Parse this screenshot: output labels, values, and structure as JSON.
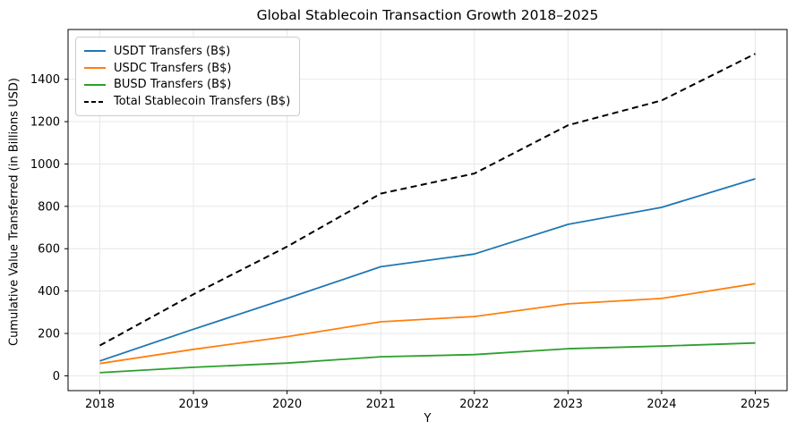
{
  "chart_data": {
    "type": "line",
    "title": "Global Stablecoin Transaction Growth 2018–2025",
    "xlabel": "Y",
    "ylabel": "Cumulative Value Transferred (in Billions USD)",
    "x": [
      2018,
      2019,
      2020,
      2021,
      2022,
      2023,
      2024,
      2025
    ],
    "yticks": [
      0,
      200,
      400,
      600,
      800,
      1000,
      1200,
      1400
    ],
    "ylim": [
      -70,
      1635
    ],
    "grid": true,
    "legend_position": "upper left",
    "series": [
      {
        "name": "USDT Transfers (B$)",
        "color": "#1f77b4",
        "style": "solid",
        "values": [
          70,
          220,
          365,
          515,
          575,
          715,
          795,
          930
        ]
      },
      {
        "name": "USDC Transfers (B$)",
        "color": "#ff7f0e",
        "style": "solid",
        "values": [
          58,
          125,
          185,
          255,
          280,
          340,
          365,
          435
        ]
      },
      {
        "name": "BUSD Transfers (B$)",
        "color": "#2ca02c",
        "style": "solid",
        "values": [
          15,
          40,
          60,
          90,
          100,
          128,
          140,
          155
        ]
      },
      {
        "name": "Total Stablecoin Transfers (B$)",
        "color": "#000000",
        "style": "dashed",
        "values": [
          143,
          385,
          610,
          860,
          955,
          1183,
          1300,
          1520
        ]
      }
    ]
  }
}
